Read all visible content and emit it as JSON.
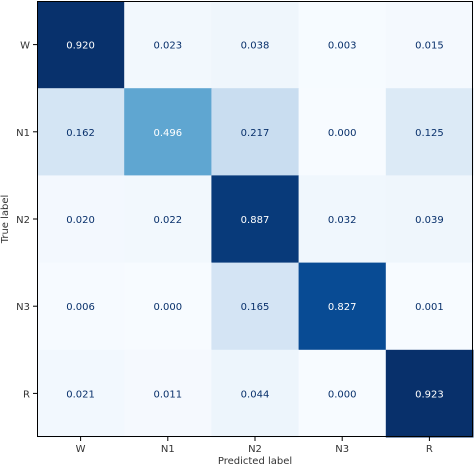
{
  "chart_data": {
    "type": "heatmap",
    "title": "",
    "xlabel": "Predicted label",
    "ylabel": "True label",
    "x_categories": [
      "W",
      "N1",
      "N2",
      "N3",
      "R"
    ],
    "y_categories": [
      "W",
      "N1",
      "N2",
      "N3",
      "R"
    ],
    "values": [
      [
        0.92,
        0.023,
        0.038,
        0.003,
        0.015
      ],
      [
        0.162,
        0.496,
        0.217,
        0.0,
        0.125
      ],
      [
        0.02,
        0.022,
        0.887,
        0.032,
        0.039
      ],
      [
        0.006,
        0.0,
        0.165,
        0.827,
        0.001
      ],
      [
        0.021,
        0.011,
        0.044,
        0.0,
        0.923
      ]
    ],
    "value_labels": [
      [
        "0.920",
        "0.023",
        "0.038",
        "0.003",
        "0.015"
      ],
      [
        "0.162",
        "0.496",
        "0.217",
        "0.000",
        "0.125"
      ],
      [
        "0.020",
        "0.022",
        "0.887",
        "0.032",
        "0.039"
      ],
      [
        "0.006",
        "0.000",
        "0.165",
        "0.827",
        "0.001"
      ],
      [
        "0.021",
        "0.011",
        "0.044",
        "0.000",
        "0.923"
      ]
    ],
    "colormap": "Blues",
    "color_low": "#f7fbff",
    "color_high": "#08306b",
    "text_color_light": "#ffffff",
    "text_color_dark": "#08306b",
    "grid": false,
    "legend": "none"
  }
}
